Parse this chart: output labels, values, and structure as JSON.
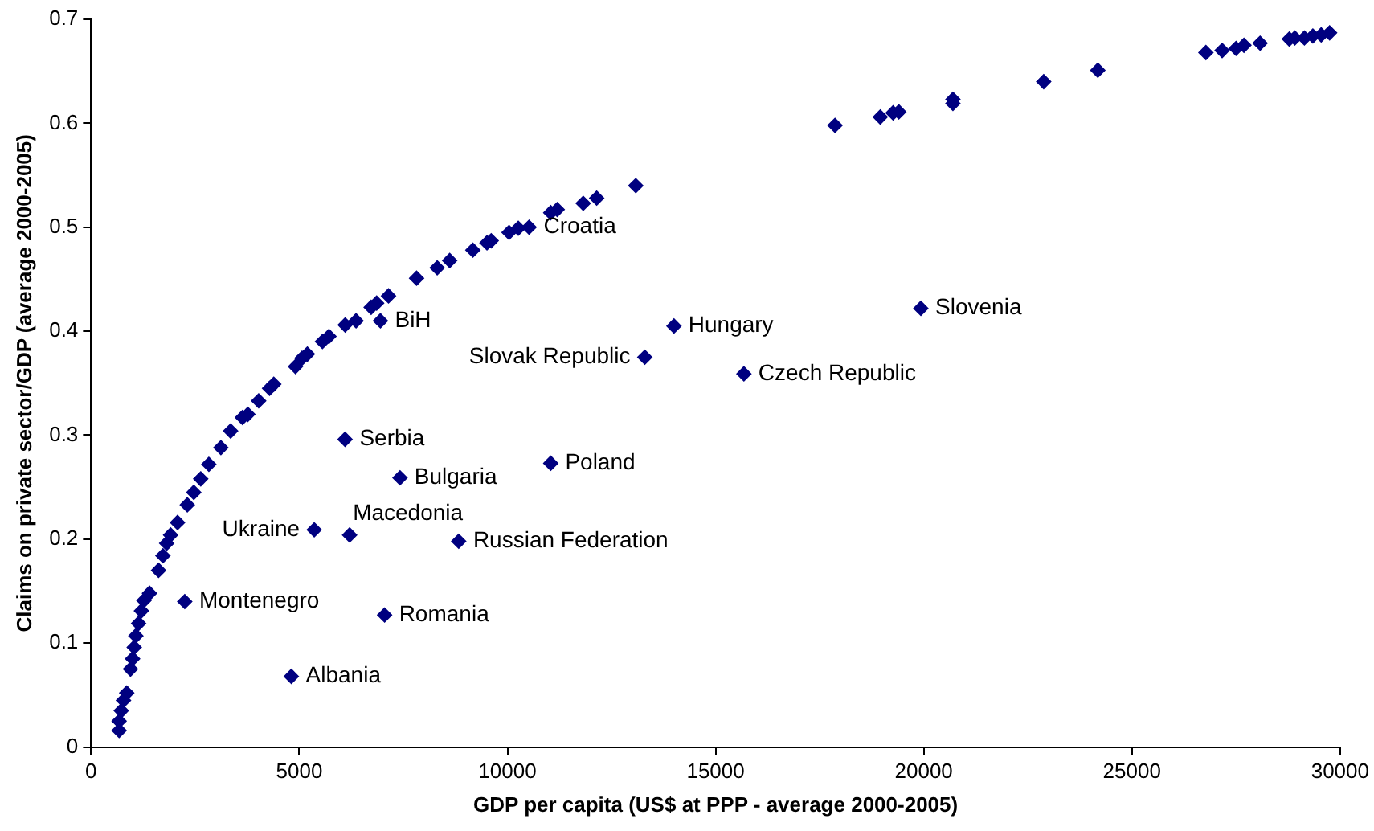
{
  "chart_data": {
    "type": "scatter",
    "xlabel": "GDP per capita (US$ at PPP - average 2000-2005)",
    "ylabel": "Claims on private sector/GDP (average 2000-2005)",
    "xlim": [
      0,
      30000
    ],
    "ylim": [
      0,
      0.7
    ],
    "xticks": [
      0,
      5000,
      10000,
      15000,
      20000,
      25000,
      30000
    ],
    "yticks": [
      0,
      0.1,
      0.2,
      0.3,
      0.4,
      0.5,
      0.6,
      0.7
    ],
    "grid": false,
    "legend": false,
    "marker": "diamond",
    "series": [
      {
        "color": "#000080",
        "x": [
          674,
          674,
          725,
          779,
          857,
          947,
          998,
          1037,
          1076,
          1142,
          1208,
          1270,
          1403,
          1621,
          1726,
          1816,
          1910,
          2077,
          2311,
          2467,
          2634,
          2829,
          3118,
          3352,
          3636,
          3765,
          4026,
          4287,
          4388,
          4910,
          5066,
          5195,
          5557,
          5713,
          6103,
          6364,
          6726,
          6859,
          7144,
          7818,
          8313,
          8613,
          9170,
          9509,
          9610,
          10039,
          10261,
          10520,
          11040,
          11196,
          11820,
          12144,
          13083,
          17868,
          18955,
          19263,
          19400,
          20700,
          20700,
          22880,
          24180,
          26776,
          27166,
          27500,
          27690,
          28078,
          28780,
          28912,
          29142,
          29345,
          29545,
          29747,
          6950,
          14000,
          19930,
          13300,
          15680,
          6100,
          7420,
          11040,
          5360,
          6210,
          8830,
          2250,
          7050,
          4810
        ],
        "values": [
          0.016,
          0.025,
          0.035,
          0.045,
          0.052,
          0.075,
          0.085,
          0.096,
          0.107,
          0.119,
          0.131,
          0.141,
          0.148,
          0.17,
          0.184,
          0.196,
          0.204,
          0.216,
          0.233,
          0.245,
          0.258,
          0.272,
          0.288,
          0.304,
          0.317,
          0.32,
          0.333,
          0.345,
          0.349,
          0.366,
          0.374,
          0.378,
          0.39,
          0.395,
          0.406,
          0.41,
          0.423,
          0.427,
          0.434,
          0.451,
          0.461,
          0.468,
          0.478,
          0.485,
          0.487,
          0.495,
          0.499,
          0.5,
          0.514,
          0.517,
          0.523,
          0.528,
          0.54,
          0.598,
          0.606,
          0.61,
          0.611,
          0.623,
          0.619,
          0.64,
          0.651,
          0.668,
          0.67,
          0.672,
          0.675,
          0.677,
          0.681,
          0.682,
          0.682,
          0.684,
          0.685,
          0.687,
          0.41,
          0.405,
          0.422,
          0.375,
          0.359,
          0.296,
          0.259,
          0.273,
          0.209,
          0.204,
          0.198,
          0.14,
          0.127,
          0.068
        ]
      }
    ],
    "annotations": [
      {
        "text": "Croatia",
        "x": 10520,
        "y": 0.5
      },
      {
        "text": "BiH",
        "x": 6950,
        "y": 0.41
      },
      {
        "text": "Hungary",
        "x": 14000,
        "y": 0.405
      },
      {
        "text": "Slovenia",
        "x": 19930,
        "y": 0.422
      },
      {
        "text": "Slovak Republic",
        "x": 13300,
        "y": 0.375
      },
      {
        "text": "Czech Republic",
        "x": 15680,
        "y": 0.359
      },
      {
        "text": "Serbia",
        "x": 6100,
        "y": 0.296
      },
      {
        "text": "Bulgaria",
        "x": 7420,
        "y": 0.259
      },
      {
        "text": "Poland",
        "x": 11040,
        "y": 0.273
      },
      {
        "text": "Ukraine",
        "x": 5360,
        "y": 0.209
      },
      {
        "text": "Macedonia",
        "x": 6210,
        "y": 0.204
      },
      {
        "text": "Russian Federation",
        "x": 8830,
        "y": 0.198
      },
      {
        "text": "Montenegro",
        "x": 2250,
        "y": 0.14
      },
      {
        "text": "Romania",
        "x": 7050,
        "y": 0.127
      },
      {
        "text": "Albania",
        "x": 4810,
        "y": 0.068
      }
    ]
  }
}
